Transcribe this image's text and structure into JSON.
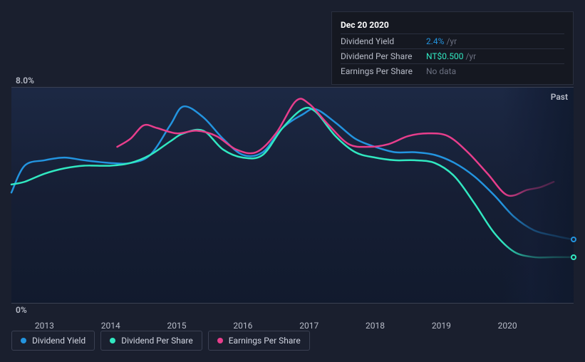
{
  "tooltip": {
    "date": "Dec 20 2020",
    "rows": [
      {
        "label": "Dividend Yield",
        "value": "2.4%",
        "unit": "/yr",
        "color": "#2394df"
      },
      {
        "label": "Dividend Per Share",
        "value": "NT$0.500",
        "unit": "/yr",
        "color": "#31e8c1"
      },
      {
        "label": "Earnings Per Share",
        "value": "No data",
        "unit": "",
        "color": "#6b7080"
      }
    ]
  },
  "chart": {
    "type": "line",
    "y_top_label": "8.0%",
    "y_bot_label": "0%",
    "past_label": "Past",
    "background_gradient": [
      "rgba(30,50,90,0.5)",
      "rgba(15,25,45,0.8)"
    ],
    "x_ticks": [
      "2013",
      "2014",
      "2015",
      "2016",
      "2017",
      "2018",
      "2019",
      "2020"
    ],
    "x_min": 2012.5,
    "x_max": 2021.0,
    "y_min": 0,
    "y_max": 8,
    "series": [
      {
        "name": "dividend-yield",
        "legend": "Dividend Yield",
        "color": "#2394df",
        "width": 2.5,
        "end_dot": true,
        "points": [
          [
            2012.5,
            4.1
          ],
          [
            2012.7,
            5.1
          ],
          [
            2013.0,
            5.3
          ],
          [
            2013.3,
            5.4
          ],
          [
            2013.6,
            5.3
          ],
          [
            2014.0,
            5.2
          ],
          [
            2014.3,
            5.2
          ],
          [
            2014.6,
            5.5
          ],
          [
            2014.9,
            6.6
          ],
          [
            2015.1,
            7.3
          ],
          [
            2015.4,
            6.9
          ],
          [
            2015.7,
            6.1
          ],
          [
            2016.0,
            5.5
          ],
          [
            2016.3,
            5.6
          ],
          [
            2016.6,
            6.5
          ],
          [
            2016.9,
            7.0
          ],
          [
            2017.1,
            7.2
          ],
          [
            2017.4,
            6.7
          ],
          [
            2017.7,
            6.1
          ],
          [
            2018.0,
            5.8
          ],
          [
            2018.3,
            5.6
          ],
          [
            2018.6,
            5.6
          ],
          [
            2018.9,
            5.5
          ],
          [
            2019.2,
            5.2
          ],
          [
            2019.5,
            4.7
          ],
          [
            2019.8,
            4.0
          ],
          [
            2020.1,
            3.2
          ],
          [
            2020.4,
            2.7
          ],
          [
            2020.7,
            2.5
          ],
          [
            2021.0,
            2.35
          ]
        ]
      },
      {
        "name": "dividend-per-share",
        "legend": "Dividend Per Share",
        "color": "#31e8c1",
        "width": 2.5,
        "end_dot": true,
        "points": [
          [
            2012.5,
            4.4
          ],
          [
            2012.7,
            4.5
          ],
          [
            2013.0,
            4.8
          ],
          [
            2013.3,
            5.0
          ],
          [
            2013.6,
            5.1
          ],
          [
            2014.0,
            5.1
          ],
          [
            2014.3,
            5.2
          ],
          [
            2014.6,
            5.5
          ],
          [
            2014.9,
            6.0
          ],
          [
            2015.1,
            6.3
          ],
          [
            2015.4,
            6.4
          ],
          [
            2015.7,
            5.7
          ],
          [
            2016.0,
            5.4
          ],
          [
            2016.3,
            5.5
          ],
          [
            2016.6,
            6.5
          ],
          [
            2016.9,
            7.2
          ],
          [
            2017.1,
            7.1
          ],
          [
            2017.4,
            6.2
          ],
          [
            2017.7,
            5.6
          ],
          [
            2018.0,
            5.4
          ],
          [
            2018.3,
            5.3
          ],
          [
            2018.6,
            5.3
          ],
          [
            2018.9,
            5.2
          ],
          [
            2019.2,
            4.7
          ],
          [
            2019.5,
            3.7
          ],
          [
            2019.8,
            2.6
          ],
          [
            2020.1,
            1.9
          ],
          [
            2020.4,
            1.7
          ],
          [
            2020.7,
            1.7
          ],
          [
            2021.0,
            1.7
          ]
        ]
      },
      {
        "name": "earnings-per-share",
        "legend": "Earnings Per Share",
        "color": "#e83e8c",
        "width": 2.5,
        "end_dot": false,
        "points": [
          [
            2014.1,
            5.8
          ],
          [
            2014.3,
            6.1
          ],
          [
            2014.5,
            6.6
          ],
          [
            2014.7,
            6.5
          ],
          [
            2015.0,
            6.3
          ],
          [
            2015.3,
            6.4
          ],
          [
            2015.6,
            6.2
          ],
          [
            2015.9,
            5.7
          ],
          [
            2016.2,
            5.6
          ],
          [
            2016.5,
            6.3
          ],
          [
            2016.8,
            7.5
          ],
          [
            2017.0,
            7.4
          ],
          [
            2017.3,
            6.6
          ],
          [
            2017.6,
            5.9
          ],
          [
            2017.9,
            5.8
          ],
          [
            2018.2,
            5.9
          ],
          [
            2018.5,
            6.2
          ],
          [
            2018.8,
            6.3
          ],
          [
            2019.1,
            6.2
          ],
          [
            2019.4,
            5.6
          ],
          [
            2019.7,
            4.8
          ],
          [
            2020.0,
            4.0
          ],
          [
            2020.3,
            4.2
          ],
          [
            2020.5,
            4.3
          ],
          [
            2020.7,
            4.5
          ]
        ]
      }
    ]
  },
  "legend_title": "series"
}
